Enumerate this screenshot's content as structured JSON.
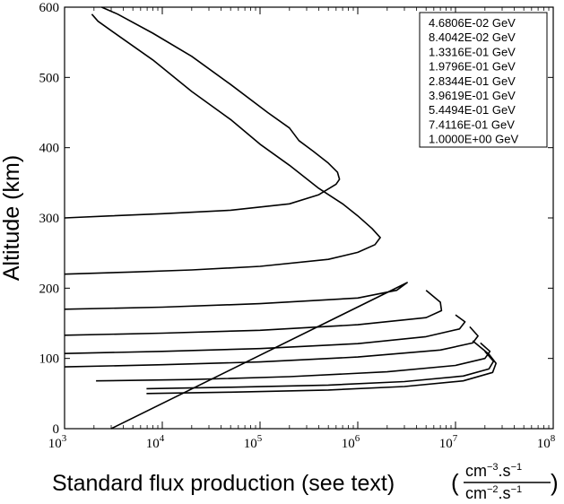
{
  "chart_data": {
    "type": "line",
    "xlabel": "Standard flux production (see text)",
    "xunit": {
      "num": "cm",
      "num_exp": "−3",
      "num_tail": ".s",
      "num_tail_exp": "−1",
      "den": "cm",
      "den_exp": "−2",
      "den_tail": ".s",
      "den_tail_exp": "−1"
    },
    "ylabel": "Altitude (km)",
    "x_scale": "log",
    "xlim": [
      1000,
      100000000
    ],
    "ylim": [
      0,
      600
    ],
    "x_ticks": [
      {
        "value": 1000,
        "base": "10",
        "exp": "3"
      },
      {
        "value": 10000,
        "base": "10",
        "exp": "4"
      },
      {
        "value": 100000,
        "base": "10",
        "exp": "5"
      },
      {
        "value": 1000000,
        "base": "10",
        "exp": "6"
      },
      {
        "value": 10000000,
        "base": "10",
        "exp": "7"
      },
      {
        "value": 100000000,
        "base": "10",
        "exp": "8"
      }
    ],
    "y_ticks": [
      "0",
      "100",
      "200",
      "300",
      "400",
      "500",
      "600"
    ],
    "grid": false,
    "legend_position": "top-right",
    "series": [
      {
        "name": "4.6806E-02 GeV",
        "points": [
          [
            1000,
            300
          ],
          [
            3000,
            303
          ],
          [
            10000,
            306
          ],
          [
            50000,
            311
          ],
          [
            200000,
            320
          ],
          [
            400000,
            333
          ],
          [
            600000,
            348
          ],
          [
            650000,
            355
          ],
          [
            620000,
            365
          ],
          [
            500000,
            378
          ],
          [
            350000,
            395
          ],
          [
            250000,
            410
          ],
          [
            200000,
            428
          ],
          [
            120000,
            450
          ],
          [
            50000,
            490
          ],
          [
            20000,
            530
          ],
          [
            8000,
            563
          ],
          [
            3500,
            590
          ],
          [
            2400,
            600
          ]
        ]
      },
      {
        "name": "8.4042E-02 GeV",
        "points": [
          [
            1000,
            220
          ],
          [
            5000,
            223
          ],
          [
            20000,
            226
          ],
          [
            100000,
            231
          ],
          [
            500000,
            241
          ],
          [
            1000000,
            251
          ],
          [
            1500000,
            262
          ],
          [
            1700000,
            272
          ],
          [
            1400000,
            285
          ],
          [
            1000000,
            303
          ],
          [
            700000,
            320
          ],
          [
            400000,
            342
          ],
          [
            200000,
            375
          ],
          [
            100000,
            405
          ],
          [
            50000,
            440
          ],
          [
            20000,
            480
          ],
          [
            8000,
            525
          ],
          [
            3500,
            560
          ],
          [
            2200,
            580
          ],
          [
            1900,
            590
          ]
        ]
      },
      {
        "name": "1.3316E-01 GeV",
        "points": [
          [
            1000,
            170
          ],
          [
            10000,
            173
          ],
          [
            100000,
            178
          ],
          [
            1000000,
            186
          ],
          [
            2500000,
            197
          ],
          [
            3200000,
            208
          ],
          [
            3000,
            0
          ]
        ]
      },
      {
        "name": "1.9796E-01 GeV",
        "points": [
          [
            1000,
            133
          ],
          [
            10000,
            136
          ],
          [
            100000,
            140
          ],
          [
            1000000,
            148
          ],
          [
            5000000,
            158
          ],
          [
            7200000,
            168
          ],
          [
            7000000,
            180
          ],
          [
            5000000,
            197
          ]
        ]
      },
      {
        "name": "2.8344E-01 GeV",
        "points": [
          [
            1000,
            107
          ],
          [
            10000,
            110
          ],
          [
            100000,
            114
          ],
          [
            1000000,
            121
          ],
          [
            5000000,
            131
          ],
          [
            11000000,
            142
          ],
          [
            12500000,
            152
          ],
          [
            10000000,
            162
          ]
        ]
      },
      {
        "name": "3.9619E-01 GeV",
        "points": [
          [
            1000,
            88
          ],
          [
            10000,
            91
          ],
          [
            100000,
            95
          ],
          [
            1000000,
            102
          ],
          [
            7000000,
            112
          ],
          [
            15000000,
            122
          ],
          [
            17000000,
            132
          ],
          [
            14000000,
            145
          ]
        ]
      },
      {
        "name": "5.4494E-01 GeV",
        "points": [
          [
            2100,
            68
          ],
          [
            20000,
            70
          ],
          [
            200000,
            74
          ],
          [
            2000000,
            81
          ],
          [
            10000000,
            90
          ],
          [
            20000000,
            100
          ],
          [
            22500000,
            110
          ],
          [
            18000000,
            122
          ]
        ]
      },
      {
        "name": "7.4116E-01 GeV",
        "points": [
          [
            6900,
            57
          ],
          [
            50000,
            59
          ],
          [
            500000,
            62
          ],
          [
            3000000,
            67
          ],
          [
            12000000,
            75
          ],
          [
            22000000,
            85
          ],
          [
            24500000,
            96
          ],
          [
            20000000,
            110
          ]
        ]
      },
      {
        "name": "1.0000E+00 GeV",
        "points": [
          [
            6900,
            50
          ],
          [
            50000,
            52
          ],
          [
            500000,
            55
          ],
          [
            3000000,
            60
          ],
          [
            12000000,
            68
          ],
          [
            24000000,
            80
          ],
          [
            26000000,
            93
          ],
          [
            22000000,
            106
          ],
          [
            15000000,
            125
          ]
        ]
      }
    ]
  }
}
